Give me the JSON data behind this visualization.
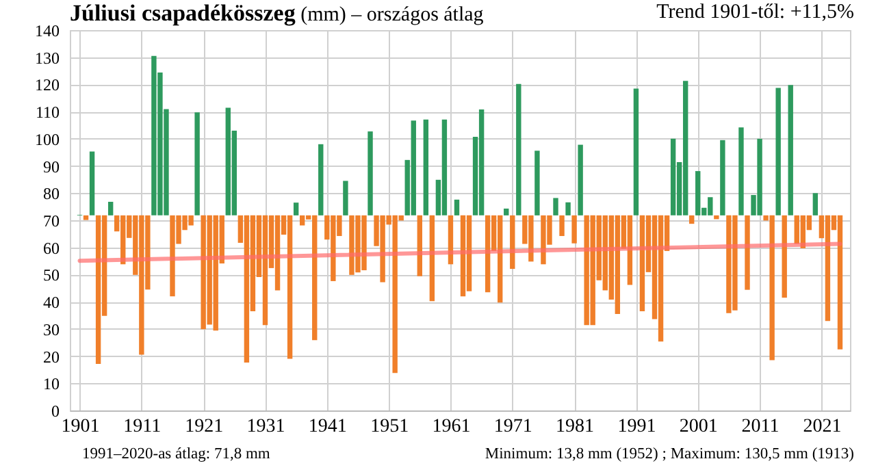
{
  "chart_data": {
    "type": "bar",
    "title": "Júliusi csapadékösszeg",
    "subtitle": "(mm) – országos átlag",
    "x": [
      1901,
      1902,
      1903,
      1904,
      1905,
      1906,
      1907,
      1908,
      1909,
      1910,
      1911,
      1912,
      1913,
      1914,
      1915,
      1916,
      1917,
      1918,
      1919,
      1920,
      1921,
      1922,
      1923,
      1924,
      1925,
      1926,
      1927,
      1928,
      1929,
      1930,
      1931,
      1932,
      1933,
      1934,
      1935,
      1936,
      1937,
      1938,
      1939,
      1940,
      1941,
      1942,
      1943,
      1944,
      1945,
      1946,
      1947,
      1948,
      1949,
      1950,
      1951,
      1952,
      1953,
      1954,
      1955,
      1956,
      1957,
      1958,
      1959,
      1960,
      1961,
      1962,
      1963,
      1964,
      1965,
      1966,
      1967,
      1968,
      1969,
      1970,
      1971,
      1972,
      1973,
      1974,
      1975,
      1976,
      1977,
      1978,
      1979,
      1980,
      1981,
      1982,
      1983,
      1984,
      1985,
      1986,
      1987,
      1988,
      1989,
      1990,
      1991,
      1992,
      1993,
      1994,
      1995,
      1996,
      1997,
      1998,
      1999,
      2000,
      2001,
      2002,
      2003,
      2004,
      2005,
      2006,
      2007,
      2008,
      2009,
      2010,
      2011,
      2012,
      2013,
      2014,
      2015,
      2016,
      2017,
      2018,
      2019,
      2020,
      2021,
      2022,
      2023,
      2024
    ],
    "xlim": [
      1900.5,
      2024.5
    ],
    "xticks": [
      1901,
      1911,
      1921,
      1931,
      1941,
      1951,
      1961,
      1971,
      1981,
      1991,
      2001,
      2011,
      2021
    ],
    "ylim": [
      0,
      140
    ],
    "yticks": [
      0,
      10,
      20,
      30,
      40,
      50,
      60,
      70,
      80,
      90,
      100,
      110,
      120,
      130,
      140
    ],
    "grid": true,
    "series": [
      {
        "type": "bar",
        "base": [
          71.8,
          71.8,
          71.8,
          71.8,
          71.8,
          71.8,
          71.8,
          71.8,
          71.8,
          71.8,
          71.8,
          71.8,
          71.8,
          71.8,
          71.8,
          71.8,
          71.8,
          71.8,
          71.8,
          71.8,
          71.8,
          71.8,
          71.8,
          71.8,
          71.8,
          71.8,
          71.8,
          71.8,
          71.8,
          71.8,
          71.8,
          71.8,
          71.8,
          71.8,
          71.8,
          71.8,
          71.8,
          71.8,
          71.8,
          71.8,
          71.8,
          71.8,
          71.8,
          71.8,
          71.8,
          71.8,
          71.8,
          71.8,
          71.8,
          71.8,
          71.8,
          71.8,
          71.8,
          71.8,
          71.8,
          71.8,
          71.8,
          71.8,
          71.8,
          71.8,
          71.8,
          71.8,
          71.8,
          71.8,
          71.8,
          71.8,
          71.8,
          71.8,
          71.8,
          71.8,
          71.8,
          71.8,
          71.8,
          71.8,
          71.8,
          71.8,
          71.8,
          71.8,
          71.8,
          71.8,
          71.8,
          71.8,
          71.8,
          71.8,
          71.8,
          71.8,
          71.8,
          71.8,
          71.8,
          71.8,
          71.8,
          71.8,
          71.8,
          71.8,
          71.8,
          71.8,
          71.8,
          71.8,
          71.8,
          71.8,
          71.8,
          71.8,
          71.8,
          71.8,
          71.8,
          71.8,
          71.8,
          71.8,
          71.8,
          71.8,
          71.8,
          71.8,
          71.8,
          71.8,
          71.8,
          71.8,
          71.8,
          71.8,
          71.8,
          71.8,
          71.8,
          71.8,
          71.8,
          71.8
        ],
        "values": [
          0.2,
          -1.7,
          23.5,
          -54.7,
          -37.0,
          5.0,
          -5.9,
          -18.0,
          -8.3,
          -21.9,
          -51.3,
          -27.3,
          58.7,
          52.6,
          39.1,
          -29.8,
          -10.5,
          -5.4,
          -3.7,
          37.9,
          -41.9,
          -40.2,
          -42.4,
          -17.7,
          39.6,
          31.2,
          -10.1,
          -54.2,
          -35.3,
          -22.7,
          -40.4,
          -19.4,
          -27.6,
          -7.1,
          -52.8,
          4.7,
          -3.7,
          -1.5,
          -45.9,
          26.2,
          -8.9,
          -24.2,
          -7.6,
          12.7,
          -21.9,
          -21.0,
          -20.2,
          30.9,
          -11.3,
          -24.6,
          -3.4,
          -58.0,
          -1.9,
          20.4,
          34.9,
          -22.4,
          35.3,
          -31.6,
          13.1,
          35.3,
          -18.0,
          5.8,
          -29.8,
          -27.9,
          28.9,
          39.0,
          -28.3,
          -13.1,
          -32.1,
          2.5,
          -19.7,
          48.4,
          -10.5,
          -17.0,
          23.8,
          -18.0,
          -10.8,
          6.4,
          -7.6,
          4.8,
          -10.3,
          26.0,
          -40.4,
          -40.4,
          -23.9,
          -27.6,
          -31.0,
          -36.3,
          -12.3,
          -25.6,
          46.7,
          -35.3,
          -20.9,
          -38.2,
          -46.4,
          -13.1,
          28.2,
          19.6,
          49.5,
          -3.1,
          16.3,
          2.8,
          6.7,
          -1.4,
          27.7,
          -36.0,
          -35.0,
          32.4,
          -27.4,
          7.5,
          28.2,
          -1.9,
          -53.3,
          46.9,
          -30.3,
          48.0,
          -10.5,
          -12.1,
          -5.4,
          8.2,
          -8.4,
          -38.9,
          -5.4,
          -49.3
        ],
        "colors": [
          "#2e9a5e",
          "#f07f2a",
          "#2e9a5e",
          "#f07f2a",
          "#f07f2a",
          "#2e9a5e",
          "#f07f2a",
          "#f07f2a",
          "#f07f2a",
          "#f07f2a",
          "#f07f2a",
          "#f07f2a",
          "#2e9a5e",
          "#2e9a5e",
          "#2e9a5e",
          "#f07f2a",
          "#f07f2a",
          "#f07f2a",
          "#f07f2a",
          "#2e9a5e",
          "#f07f2a",
          "#f07f2a",
          "#f07f2a",
          "#f07f2a",
          "#2e9a5e",
          "#2e9a5e",
          "#f07f2a",
          "#f07f2a",
          "#f07f2a",
          "#f07f2a",
          "#f07f2a",
          "#f07f2a",
          "#f07f2a",
          "#f07f2a",
          "#f07f2a",
          "#2e9a5e",
          "#f07f2a",
          "#f07f2a",
          "#f07f2a",
          "#2e9a5e",
          "#f07f2a",
          "#f07f2a",
          "#f07f2a",
          "#2e9a5e",
          "#f07f2a",
          "#f07f2a",
          "#f07f2a",
          "#2e9a5e",
          "#f07f2a",
          "#f07f2a",
          "#f07f2a",
          "#f07f2a",
          "#f07f2a",
          "#2e9a5e",
          "#2e9a5e",
          "#f07f2a",
          "#2e9a5e",
          "#f07f2a",
          "#2e9a5e",
          "#2e9a5e",
          "#f07f2a",
          "#2e9a5e",
          "#f07f2a",
          "#f07f2a",
          "#2e9a5e",
          "#2e9a5e",
          "#f07f2a",
          "#f07f2a",
          "#f07f2a",
          "#2e9a5e",
          "#f07f2a",
          "#2e9a5e",
          "#f07f2a",
          "#f07f2a",
          "#2e9a5e",
          "#f07f2a",
          "#f07f2a",
          "#2e9a5e",
          "#f07f2a",
          "#2e9a5e",
          "#f07f2a",
          "#2e9a5e",
          "#f07f2a",
          "#f07f2a",
          "#f07f2a",
          "#f07f2a",
          "#f07f2a",
          "#f07f2a",
          "#f07f2a",
          "#f07f2a",
          "#2e9a5e",
          "#f07f2a",
          "#f07f2a",
          "#f07f2a",
          "#f07f2a",
          "#f07f2a",
          "#2e9a5e",
          "#2e9a5e",
          "#2e9a5e",
          "#f07f2a",
          "#2e9a5e",
          "#2e9a5e",
          "#2e9a5e",
          "#f07f2a",
          "#2e9a5e",
          "#f07f2a",
          "#f07f2a",
          "#2e9a5e",
          "#f07f2a",
          "#2e9a5e",
          "#2e9a5e",
          "#f07f2a",
          "#f07f2a",
          "#2e9a5e",
          "#f07f2a",
          "#2e9a5e",
          "#f07f2a",
          "#f07f2a",
          "#f07f2a",
          "#2e9a5e",
          "#f07f2a",
          "#f07f2a",
          "#f07f2a",
          "#f07f2a"
        ]
      },
      {
        "type": "line",
        "color": "#ff6b6b",
        "x": [
          1901,
          2024
        ],
        "values": [
          55.1,
          61.3
        ]
      }
    ],
    "annotations": [
      "Trend 1901-től: +11,5%",
      "1991–2020-as átlag: 71,8 mm",
      "Minimum: 13,8 mm (1952) ; Maximum: 130,5 mm (1913)"
    ]
  }
}
